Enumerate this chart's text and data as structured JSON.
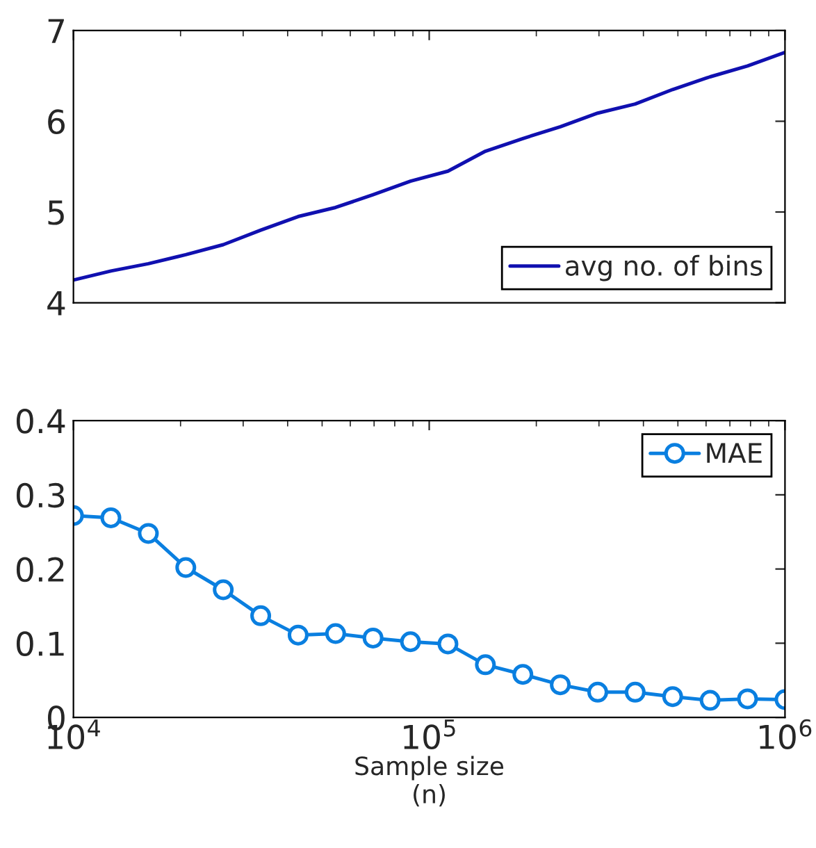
{
  "chart_data": [
    {
      "type": "line",
      "tick_labels": "y",
      "log": "x",
      "legend": "bottom right",
      "marker": "none",
      "line_style": "solid",
      "xlim": [
        10000,
        1000000
      ],
      "xticks": [
        {
          "value": 10000,
          "label": null
        },
        {
          "value": 100000,
          "label": null
        },
        {
          "value": 1000000,
          "label": null
        }
      ],
      "ylim": [
        4,
        7
      ],
      "yticks": [
        4,
        5,
        6,
        7
      ],
      "x": [
        10000,
        12743,
        16238,
        20691,
        26367,
        33598,
        42813,
        54556,
        69519,
        88587,
        112884,
        143845,
        183298,
        233572,
        297635,
        379269,
        483293,
        615848,
        784760,
        1000000
      ],
      "series": [
        {
          "name": "avg no. of bins",
          "color": "#1010b0",
          "values": [
            4.25,
            4.35,
            4.43,
            4.53,
            4.64,
            4.8,
            4.95,
            5.05,
            5.19,
            5.34,
            5.45,
            5.67,
            5.81,
            5.94,
            6.09,
            6.19,
            6.35,
            6.49,
            6.61,
            6.76
          ]
        }
      ]
    },
    {
      "type": "line",
      "log": "x",
      "legend": "top right",
      "marker": "circle",
      "line_style": "solid",
      "xlabel": "Sample size\n(n)",
      "xlim": [
        10000,
        1000000
      ],
      "xticks": [
        {
          "value": 10000,
          "label": "10$^{4}$"
        },
        {
          "value": 100000,
          "label": "10$^{5}$"
        },
        {
          "value": 1000000,
          "label": "10$^{6}$"
        }
      ],
      "ylim": [
        0,
        0.4
      ],
      "yticks": [
        0,
        0.1,
        0.2,
        0.3,
        0.4
      ],
      "x": [
        10000,
        12743,
        16238,
        20691,
        26367,
        33598,
        42813,
        54556,
        69519,
        88587,
        112884,
        143845,
        183298,
        233572,
        297635,
        379269,
        483293,
        615848,
        784760,
        1000000
      ],
      "series": [
        {
          "name": "MAE",
          "color": "#0a7fe0",
          "values": [
            0.272,
            0.269,
            0.248,
            0.202,
            0.172,
            0.137,
            0.111,
            0.113,
            0.107,
            0.102,
            0.099,
            0.071,
            0.058,
            0.044,
            0.034,
            0.034,
            0.028,
            0.023,
            0.025,
            0.024
          ]
        }
      ]
    }
  ]
}
